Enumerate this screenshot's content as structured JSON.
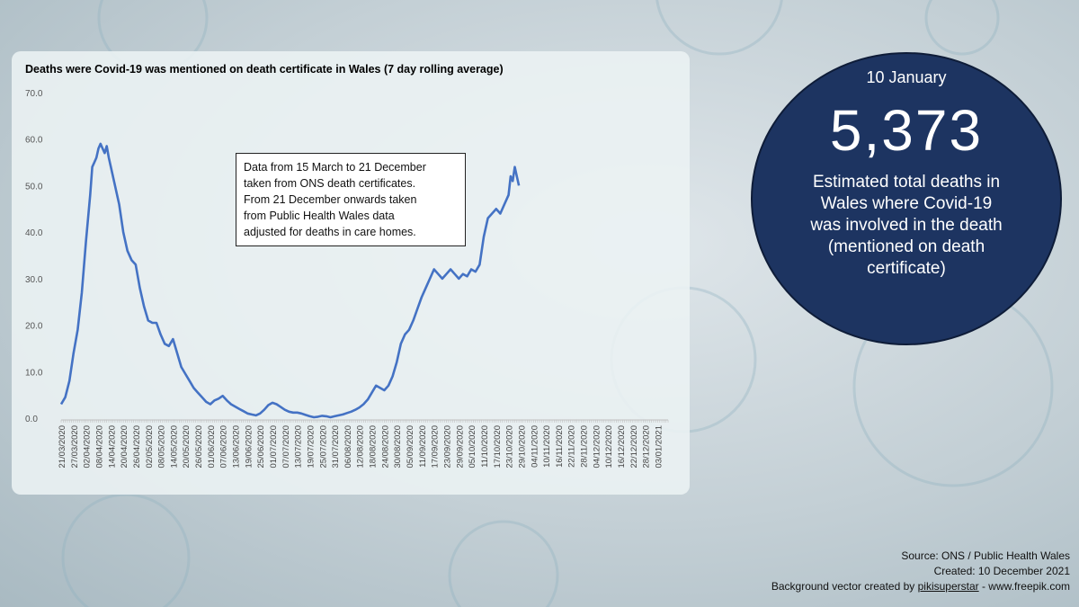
{
  "chart_data": {
    "type": "line",
    "title": "Deaths were Covid-19 was mentioned on death certificate in Wales (7 day rolling average)",
    "xlabel": "",
    "ylabel": "",
    "ylim": [
      0,
      70
    ],
    "yticks": [
      "0.0",
      "10.0",
      "20.0",
      "30.0",
      "40.0",
      "50.0",
      "60.0",
      "70.0"
    ],
    "x_start": "21/03/2020",
    "x_tick_labels": [
      "21/03/2020",
      "27/03/2020",
      "02/04/2020",
      "08/04/2020",
      "14/04/2020",
      "20/04/2020",
      "26/04/2020",
      "02/05/2020",
      "08/05/2020",
      "14/05/2020",
      "20/05/2020",
      "26/05/2020",
      "01/06/2020",
      "07/06/2020",
      "13/06/2020",
      "19/06/2020",
      "25/06/2020",
      "01/07/2020",
      "07/07/2020",
      "13/07/2020",
      "19/07/2020",
      "25/07/2020",
      "31/07/2020",
      "06/08/2020",
      "12/08/2020",
      "18/08/2020",
      "24/08/2020",
      "30/08/2020",
      "05/09/2020",
      "11/09/2020",
      "17/09/2020",
      "23/09/2020",
      "29/09/2020",
      "05/10/2020",
      "11/10/2020",
      "17/10/2020",
      "23/10/2020",
      "29/10/2020",
      "04/11/2020",
      "10/11/2020",
      "16/11/2020",
      "22/11/2020",
      "28/11/2020",
      "04/12/2020",
      "10/12/2020",
      "16/12/2020",
      "22/12/2020",
      "28/12/2020",
      "03/01/2021"
    ],
    "series": [
      {
        "name": "7 day rolling average",
        "color": "#4472c4",
        "points": [
          [
            0,
            3
          ],
          [
            2,
            4.5
          ],
          [
            4,
            8
          ],
          [
            6,
            14
          ],
          [
            8,
            19
          ],
          [
            10,
            27
          ],
          [
            12,
            38
          ],
          [
            14,
            48
          ],
          [
            15,
            54
          ],
          [
            16,
            55
          ],
          [
            17,
            56
          ],
          [
            18,
            58
          ],
          [
            19,
            59
          ],
          [
            20,
            58
          ],
          [
            21,
            57
          ],
          [
            22,
            58.5
          ],
          [
            23,
            56
          ],
          [
            24,
            54
          ],
          [
            26,
            50
          ],
          [
            28,
            46
          ],
          [
            30,
            40
          ],
          [
            32,
            36
          ],
          [
            34,
            34
          ],
          [
            36,
            33
          ],
          [
            38,
            28
          ],
          [
            40,
            24
          ],
          [
            42,
            21
          ],
          [
            44,
            20.5
          ],
          [
            46,
            20.5
          ],
          [
            48,
            18
          ],
          [
            50,
            16
          ],
          [
            52,
            15.5
          ],
          [
            54,
            17
          ],
          [
            56,
            14
          ],
          [
            58,
            11
          ],
          [
            60,
            9.5
          ],
          [
            62,
            8
          ],
          [
            64,
            6.5
          ],
          [
            66,
            5.5
          ],
          [
            68,
            4.5
          ],
          [
            70,
            3.5
          ],
          [
            72,
            3
          ],
          [
            74,
            3.8
          ],
          [
            76,
            4.2
          ],
          [
            78,
            4.8
          ],
          [
            80,
            3.8
          ],
          [
            82,
            3
          ],
          [
            84,
            2.5
          ],
          [
            86,
            2
          ],
          [
            88,
            1.5
          ],
          [
            90,
            1
          ],
          [
            92,
            0.8
          ],
          [
            94,
            0.6
          ],
          [
            96,
            1
          ],
          [
            98,
            1.8
          ],
          [
            100,
            2.8
          ],
          [
            102,
            3.3
          ],
          [
            104,
            3
          ],
          [
            106,
            2.4
          ],
          [
            108,
            1.8
          ],
          [
            110,
            1.4
          ],
          [
            112,
            1.2
          ],
          [
            114,
            1.2
          ],
          [
            116,
            1
          ],
          [
            118,
            0.7
          ],
          [
            120,
            0.4
          ],
          [
            122,
            0.2
          ],
          [
            124,
            0.3
          ],
          [
            126,
            0.5
          ],
          [
            128,
            0.4
          ],
          [
            130,
            0.2
          ],
          [
            132,
            0.4
          ],
          [
            134,
            0.6
          ],
          [
            136,
            0.8
          ],
          [
            138,
            1.1
          ],
          [
            140,
            1.4
          ],
          [
            142,
            1.8
          ],
          [
            144,
            2.3
          ],
          [
            146,
            3
          ],
          [
            148,
            4
          ],
          [
            150,
            5.5
          ],
          [
            152,
            7
          ],
          [
            154,
            6.5
          ],
          [
            156,
            6
          ],
          [
            158,
            7
          ],
          [
            160,
            9
          ],
          [
            162,
            12
          ],
          [
            164,
            16
          ],
          [
            166,
            18
          ],
          [
            168,
            19
          ],
          [
            170,
            21
          ],
          [
            172,
            23.5
          ],
          [
            174,
            26
          ],
          [
            176,
            28
          ],
          [
            178,
            30
          ],
          [
            180,
            32
          ],
          [
            182,
            31
          ],
          [
            184,
            30
          ],
          [
            186,
            31
          ],
          [
            188,
            32
          ],
          [
            190,
            31
          ],
          [
            192,
            30
          ],
          [
            194,
            31
          ],
          [
            196,
            30.5
          ],
          [
            198,
            32
          ],
          [
            200,
            31.5
          ],
          [
            202,
            33
          ],
          [
            204,
            39
          ],
          [
            206,
            43
          ],
          [
            208,
            44
          ],
          [
            210,
            45
          ],
          [
            212,
            44
          ],
          [
            214,
            46
          ],
          [
            216,
            48
          ],
          [
            217,
            52
          ],
          [
            218,
            51
          ],
          [
            219,
            54
          ],
          [
            220,
            52
          ],
          [
            221,
            50
          ]
        ]
      }
    ]
  },
  "callout": {
    "line1": "Data from 15 March to 21 December",
    "line2": "taken from ONS death certificates.",
    "line3": "From 21 December onwards taken",
    "line4": "from Public Health Wales data",
    "line5": "adjusted for deaths in care homes."
  },
  "summary": {
    "date": "10 January",
    "total": "5,373",
    "desc1": "Estimated total deaths in",
    "desc2": "Wales where Covid-19",
    "desc3": "was involved in the death",
    "desc4": "(mentioned on death",
    "desc5": "certificate)"
  },
  "source": {
    "line1": "Source: ONS / Public Health Wales",
    "line2": "Created: 10 December 2021",
    "line3_prefix": "Background vector created by ",
    "line3_author": "pikisuperstar",
    "line3_suffix": " - www.freepik.com"
  },
  "colors": {
    "line": "#4472c4",
    "circle": "#1d3461"
  }
}
